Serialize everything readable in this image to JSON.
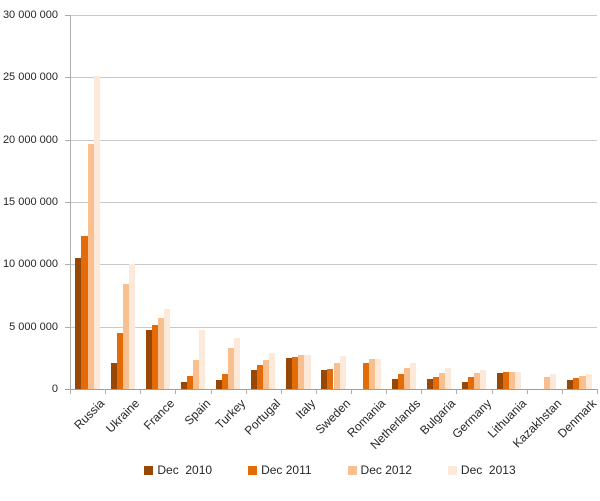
{
  "chart_data": {
    "type": "bar",
    "title": "",
    "xlabel": "",
    "ylabel": "",
    "ylim": [
      0,
      30000000
    ],
    "grid": true,
    "legend_position": "bottom",
    "categories": [
      "Russia",
      "Ukraine",
      "France",
      "Spain",
      "Turkey",
      "Portugal",
      "Italy",
      "Sweden",
      "Romania",
      "Netherlands",
      "Bulgaria",
      "Germany",
      "Lithuania",
      "Kazakhstan",
      "Denmark"
    ],
    "yticks": [
      {
        "value": 0,
        "label": "0"
      },
      {
        "value": 5000000,
        "label": "5 000 000"
      },
      {
        "value": 10000000,
        "label": "10 000 000"
      },
      {
        "value": 15000000,
        "label": "15 000 000"
      },
      {
        "value": 20000000,
        "label": "20 000 000"
      },
      {
        "value": 25000000,
        "label": "25 000 000"
      },
      {
        "value": 30000000,
        "label": "30 000 000"
      }
    ],
    "series": [
      {
        "name": "Dec  2010",
        "color": "#974706",
        "values": [
          10500000,
          2100000,
          4700000,
          600000,
          700000,
          1550000,
          2500000,
          1500000,
          0,
          800000,
          800000,
          550000,
          1250000,
          0,
          750000
        ]
      },
      {
        "name": "Dec 2011",
        "color": "#E36C09",
        "values": [
          12250000,
          4500000,
          5150000,
          1050000,
          1200000,
          1950000,
          2550000,
          1600000,
          2100000,
          1200000,
          950000,
          950000,
          1350000,
          0,
          900000
        ]
      },
      {
        "name": "Dec 2012",
        "color": "#FABF8F",
        "values": [
          19650000,
          8450000,
          5700000,
          2300000,
          3300000,
          2300000,
          2750000,
          2100000,
          2400000,
          1650000,
          1250000,
          1300000,
          1400000,
          1000000,
          1050000
        ]
      },
      {
        "name": "Dec  2013",
        "color": "#FDE9D9",
        "values": [
          25100000,
          10000000,
          6400000,
          4750000,
          4100000,
          2900000,
          2750000,
          2650000,
          2400000,
          2100000,
          1650000,
          1500000,
          1400000,
          1200000,
          1200000
        ]
      }
    ],
    "colors": {
      "gridline": "#c9c9c9",
      "axis": "#9e9e9e",
      "text": "#262626",
      "background": "#ffffff"
    }
  }
}
